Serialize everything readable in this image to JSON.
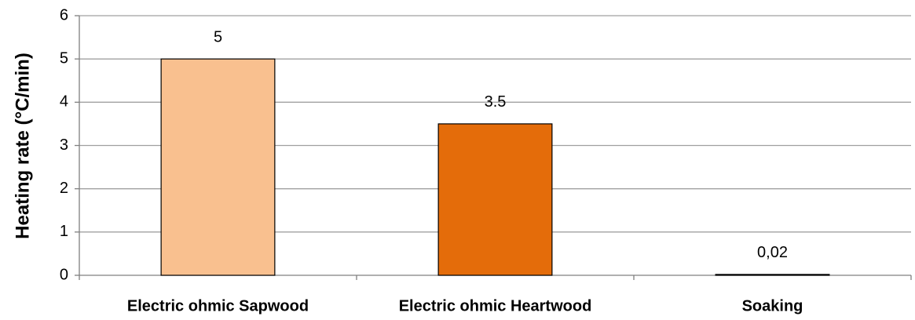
{
  "chart_data": {
    "type": "bar",
    "y_label": "Heating rate (°C/min)",
    "categories": [
      "Electric ohmic Sapwood",
      "Electric ohmic Heartwood",
      "Soaking"
    ],
    "values": [
      5,
      3.5,
      0.02
    ],
    "value_labels": [
      "5",
      "3.5",
      "0,02"
    ],
    "colors": [
      "#f9c08f",
      "#e46c0a",
      "#4f6228"
    ],
    "ylim": [
      0,
      6
    ],
    "yticks": [
      0,
      1,
      2,
      3,
      4,
      5,
      6
    ],
    "grid": true
  }
}
